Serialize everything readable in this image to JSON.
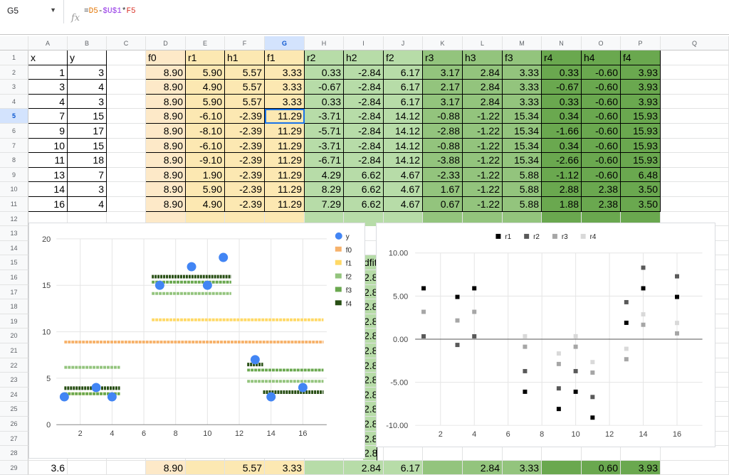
{
  "namebox": {
    "cell": "G5"
  },
  "formula_parts": [
    {
      "t": "=",
      "c": "#202124"
    },
    {
      "t": "D5",
      "c": "#e37400"
    },
    {
      "t": "-",
      "c": "#202124"
    },
    {
      "t": "$U$1",
      "c": "#9334e6"
    },
    {
      "t": "*",
      "c": "#202124"
    },
    {
      "t": "F5",
      "c": "#d93025"
    }
  ],
  "fx_label": "fx",
  "columns": [
    "A",
    "B",
    "C",
    "D",
    "E",
    "F",
    "G",
    "H",
    "I",
    "J",
    "K",
    "L",
    "M",
    "N",
    "O",
    "P",
    "Q"
  ],
  "selected_col": "G",
  "selected_row": 5,
  "row_numbers": [
    1,
    2,
    3,
    4,
    5,
    6,
    7,
    8,
    9,
    10,
    11,
    12,
    13,
    14,
    15,
    16,
    17,
    18,
    19,
    20,
    21,
    22,
    23,
    24,
    25,
    26,
    27,
    28,
    29
  ],
  "headers": [
    "x",
    "y",
    "",
    "f0",
    "r1",
    "h1",
    "f1",
    "r2",
    "h2",
    "f2",
    "r3",
    "h3",
    "f3",
    "r4",
    "h4",
    "f4"
  ],
  "rows": [
    [
      "1",
      "3",
      "",
      "8.90",
      "5.90",
      "5.57",
      "3.33",
      "0.33",
      "-2.84",
      "6.17",
      "3.17",
      "2.84",
      "3.33",
      "0.33",
      "-0.60",
      "3.93"
    ],
    [
      "3",
      "4",
      "",
      "8.90",
      "4.90",
      "5.57",
      "3.33",
      "-0.67",
      "-2.84",
      "6.17",
      "2.17",
      "2.84",
      "3.33",
      "-0.67",
      "-0.60",
      "3.93"
    ],
    [
      "4",
      "3",
      "",
      "8.90",
      "5.90",
      "5.57",
      "3.33",
      "0.33",
      "-2.84",
      "6.17",
      "3.17",
      "2.84",
      "3.33",
      "0.33",
      "-0.60",
      "3.93"
    ],
    [
      "7",
      "15",
      "",
      "8.90",
      "-6.10",
      "-2.39",
      "11.29",
      "-3.71",
      "-2.84",
      "14.12",
      "-0.88",
      "-1.22",
      "15.34",
      "0.34",
      "-0.60",
      "15.93"
    ],
    [
      "9",
      "17",
      "",
      "8.90",
      "-8.10",
      "-2.39",
      "11.29",
      "-5.71",
      "-2.84",
      "14.12",
      "-2.88",
      "-1.22",
      "15.34",
      "-1.66",
      "-0.60",
      "15.93"
    ],
    [
      "10",
      "15",
      "",
      "8.90",
      "-6.10",
      "-2.39",
      "11.29",
      "-3.71",
      "-2.84",
      "14.12",
      "-0.88",
      "-1.22",
      "15.34",
      "0.34",
      "-0.60",
      "15.93"
    ],
    [
      "11",
      "18",
      "",
      "8.90",
      "-9.10",
      "-2.39",
      "11.29",
      "-6.71",
      "-2.84",
      "14.12",
      "-3.88",
      "-1.22",
      "15.34",
      "-2.66",
      "-0.60",
      "15.93"
    ],
    [
      "13",
      "7",
      "",
      "8.90",
      "1.90",
      "-2.39",
      "11.29",
      "4.29",
      "6.62",
      "4.67",
      "-2.33",
      "-1.22",
      "5.88",
      "-1.12",
      "-0.60",
      "6.48"
    ],
    [
      "14",
      "3",
      "",
      "8.90",
      "5.90",
      "-2.39",
      "11.29",
      "8.29",
      "6.62",
      "4.67",
      "1.67",
      "-1.22",
      "5.88",
      "2.88",
      "2.38",
      "3.50"
    ],
    [
      "16",
      "4",
      "",
      "8.90",
      "4.90",
      "-2.39",
      "11.29",
      "7.29",
      "6.62",
      "4.67",
      "0.67",
      "-1.22",
      "5.88",
      "1.88",
      "2.38",
      "3.50"
    ]
  ],
  "peek_col_text": "dfit",
  "peek_col_value": "2.8",
  "bottom_row": [
    "3.6",
    "",
    "",
    "8.90",
    "",
    "5.57",
    "3.33",
    "",
    "2.84",
    "6.17",
    "",
    "2.84",
    "3.33",
    "",
    "0.60",
    "3.93"
  ],
  "colors": {
    "orange_light": "#fde9c8",
    "orange": "#fce8b2",
    "yellow": "#fbe29b",
    "green1": "#b7dca8",
    "green2": "#93c47d",
    "green3": "#6aa84f",
    "green4": "#38761d"
  },
  "chart1": {
    "legend": [
      {
        "name": "y",
        "color": "#4285f4"
      },
      {
        "name": "f0",
        "color": "#f6b26b"
      },
      {
        "name": "f1",
        "color": "#ffd966"
      },
      {
        "name": "f2",
        "color": "#93c47d"
      },
      {
        "name": "f3",
        "color": "#6aa84f"
      },
      {
        "name": "f4",
        "color": "#274e13"
      }
    ]
  },
  "chart2": {
    "legend": [
      {
        "name": "r1",
        "color": "#000000"
      },
      {
        "name": "r2",
        "color": "#595959"
      },
      {
        "name": "r3",
        "color": "#a6a6a6"
      },
      {
        "name": "r4",
        "color": "#d9d9d9"
      }
    ]
  },
  "chart_data": [
    {
      "type": "scatter",
      "x": [
        1,
        3,
        4,
        7,
        9,
        10,
        11,
        13,
        14,
        16
      ],
      "series": [
        {
          "name": "y",
          "values": [
            3,
            4,
            3,
            15,
            17,
            15,
            18,
            7,
            3,
            4
          ]
        },
        {
          "name": "f0",
          "values": [
            8.9,
            8.9,
            8.9,
            8.9,
            8.9,
            8.9,
            8.9,
            8.9,
            8.9,
            8.9
          ]
        },
        {
          "name": "f1",
          "values": [
            3.33,
            3.33,
            3.33,
            11.29,
            11.29,
            11.29,
            11.29,
            11.29,
            11.29,
            11.29
          ]
        },
        {
          "name": "f2",
          "values": [
            6.17,
            6.17,
            6.17,
            14.12,
            14.12,
            14.12,
            14.12,
            4.67,
            4.67,
            4.67
          ]
        },
        {
          "name": "f3",
          "values": [
            3.33,
            3.33,
            3.33,
            15.34,
            15.34,
            15.34,
            15.34,
            5.88,
            5.88,
            5.88
          ]
        },
        {
          "name": "f4",
          "values": [
            3.93,
            3.93,
            3.93,
            15.93,
            15.93,
            15.93,
            15.93,
            6.48,
            3.5,
            3.5
          ]
        }
      ],
      "xticks": [
        2,
        4,
        6,
        8,
        10,
        12,
        14,
        16
      ],
      "yticks": [
        0,
        5,
        10,
        15,
        20
      ],
      "xlim": [
        0.5,
        17.5
      ],
      "ylim": [
        0,
        20
      ],
      "grid": true,
      "legend": "right"
    },
    {
      "type": "scatter",
      "x": [
        1,
        3,
        4,
        7,
        9,
        10,
        11,
        13,
        14,
        16
      ],
      "series": [
        {
          "name": "r1",
          "values": [
            5.9,
            4.9,
            5.9,
            -6.1,
            -8.1,
            -6.1,
            -9.1,
            1.9,
            5.9,
            4.9
          ]
        },
        {
          "name": "r2",
          "values": [
            0.33,
            -0.67,
            0.33,
            -3.71,
            -5.71,
            -3.71,
            -6.71,
            4.29,
            8.29,
            7.29
          ]
        },
        {
          "name": "r3",
          "values": [
            3.17,
            2.17,
            3.17,
            -0.88,
            -2.88,
            -0.88,
            -3.88,
            -2.33,
            1.67,
            0.67
          ]
        },
        {
          "name": "r4",
          "values": [
            0.33,
            -0.67,
            0.33,
            0.34,
            -1.66,
            0.34,
            -2.66,
            -1.12,
            2.88,
            1.88
          ]
        }
      ],
      "xticks": [
        2,
        4,
        6,
        8,
        10,
        12,
        14,
        16
      ],
      "yticks": [
        "10.00",
        "5.00",
        "0.00",
        "-5.00",
        "-10.00"
      ],
      "xlim": [
        0.5,
        17.5
      ],
      "ylim": [
        -10,
        10
      ],
      "grid": true,
      "legend": "top"
    }
  ]
}
